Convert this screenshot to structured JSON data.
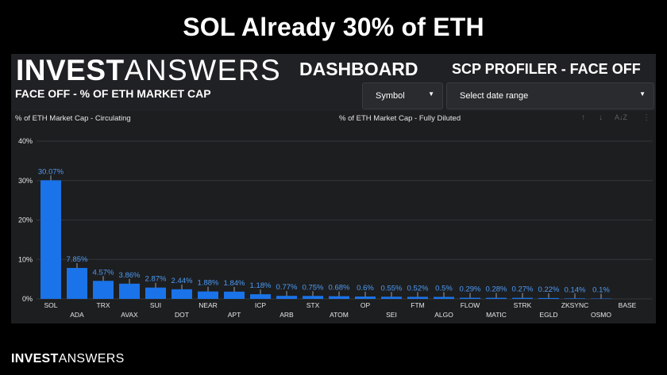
{
  "slide": {
    "title": "SOL Already 30% of ETH"
  },
  "brand": {
    "bold": "INVEST",
    "light": "ANSWERS"
  },
  "dashboard": {
    "title": "DASHBOARD",
    "profiler": "SCP PROFILER - FACE OFF",
    "subtitle": "FACE OFF - % OF ETH MARKET CAP",
    "symbol_dropdown": {
      "label": "Symbol"
    },
    "date_dropdown": {
      "label": "Select date range"
    }
  },
  "chart_tabs": {
    "circulating": "% of ETH Market Cap - Circulating",
    "fully_diluted": "% of ETH Market Cap - Fully Diluted"
  },
  "toolbar": {
    "up_icon": "arrow-up-icon",
    "down_icon": "arrow-down-icon",
    "sort_icon": "sort-az-icon",
    "more_icon": "more-vert-icon"
  },
  "colors": {
    "bar": "#1a73e8",
    "label": "#4d9cf5",
    "panel": "#202124",
    "grid": "#33353a"
  },
  "chart_data": {
    "type": "bar",
    "title": "",
    "xlabel": "",
    "ylabel": "",
    "ylim": [
      0,
      40
    ],
    "yticks": [
      "0%",
      "10%",
      "20%",
      "30%",
      "40%"
    ],
    "categories": [
      "SOL",
      "ADA",
      "TRX",
      "AVAX",
      "SUI",
      "DOT",
      "NEAR",
      "APT",
      "ICP",
      "ARB",
      "STX",
      "ATOM",
      "OP",
      "SEI",
      "FTM",
      "ALGO",
      "FLOW",
      "MATIC",
      "STRK",
      "EGLD",
      "ZKSYNC",
      "OSMO",
      "BASE"
    ],
    "values": [
      30.07,
      7.85,
      4.57,
      3.86,
      2.87,
      2.44,
      1.88,
      1.84,
      1.18,
      0.77,
      0.75,
      0.68,
      0.6,
      0.55,
      0.52,
      0.5,
      0.29,
      0.28,
      0.27,
      0.22,
      0.14,
      0.1,
      0
    ],
    "labels": [
      "30.07%",
      "7.85%",
      "4.57%",
      "3.86%",
      "2.87%",
      "2.44%",
      "1.88%",
      "1.84%",
      "1.18%",
      "0.77%",
      "0.75%",
      "0.68%",
      "0.6%",
      "0.55%",
      "0.52%",
      "0.5%",
      "0.29%",
      "0.28%",
      "0.27%",
      "0.22%",
      "0.14%",
      "0.1%",
      ""
    ],
    "grid": true,
    "legend": "none"
  },
  "footer": {
    "bold": "INVEST",
    "light": "ANSWERS"
  }
}
